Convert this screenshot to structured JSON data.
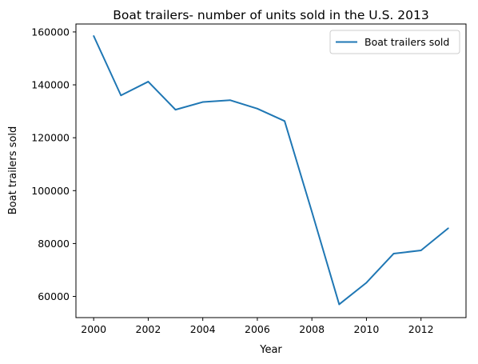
{
  "chart_data": {
    "type": "line",
    "title": "Boat trailers- number of units sold in the U.S. 2013",
    "xlabel": "Year",
    "ylabel": "Boat trailers sold",
    "x": [
      2000,
      2001,
      2002,
      2003,
      2004,
      2005,
      2006,
      2007,
      2008,
      2009,
      2010,
      2011,
      2012,
      2013
    ],
    "series": [
      {
        "name": "Boat trailers sold",
        "color": "#1f77b4",
        "values": [
          158500,
          136000,
          141200,
          130600,
          133500,
          134200,
          131000,
          126300,
          92000,
          57000,
          65200,
          76200,
          77400,
          85800
        ]
      }
    ],
    "xlim": [
      1999.35,
      2013.65
    ],
    "ylim": [
      52000,
      163000
    ],
    "xticks": [
      2000,
      2002,
      2004,
      2006,
      2008,
      2010,
      2012
    ],
    "yticks": [
      60000,
      80000,
      100000,
      120000,
      140000,
      160000
    ],
    "legend": "top-right",
    "grid": false
  }
}
